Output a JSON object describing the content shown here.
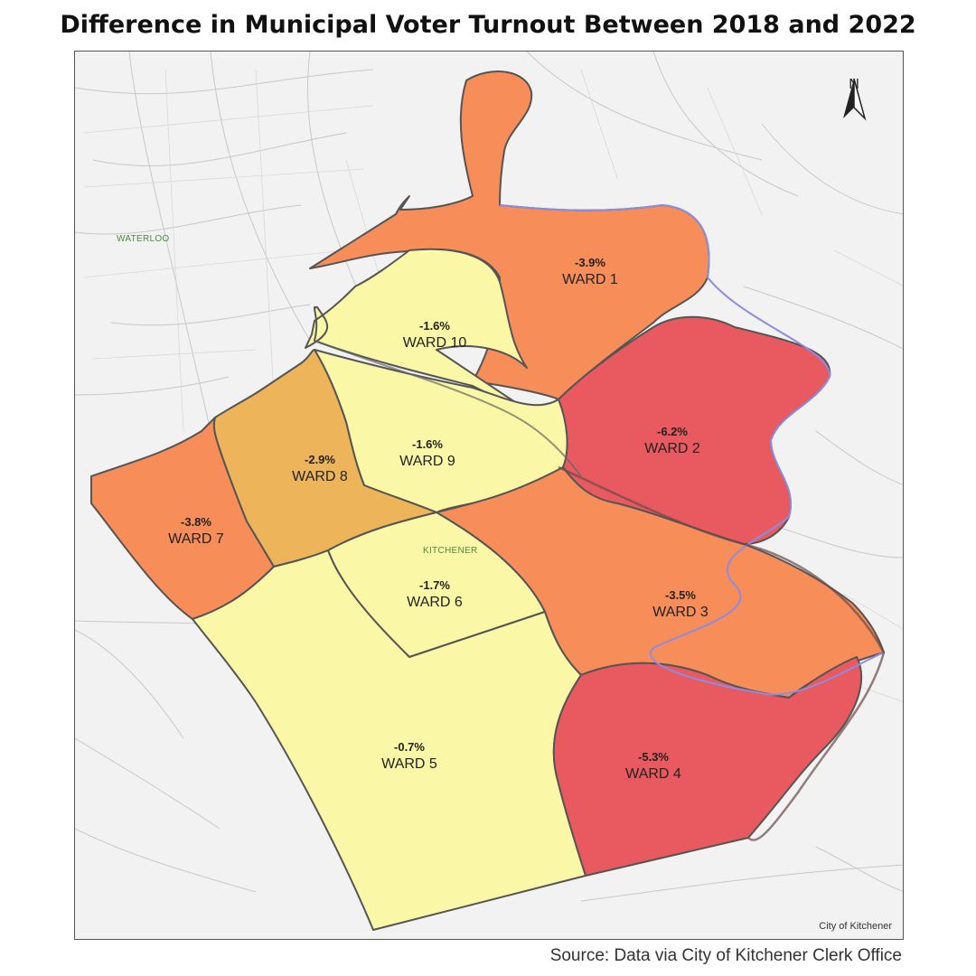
{
  "title": "Difference in Municipal Voter Turnout Between 2018 and 2022",
  "source": "Source: Data via City of Kitchener Clerk Office",
  "map_credit": "City of Kitchener",
  "north_label": "N",
  "places": {
    "waterloo": "WATERLOO",
    "kitchener": "KITCHENER"
  },
  "colors": {
    "lt_2": "#faf7a6",
    "between_2_3": "#edb45a",
    "between_3_4": "#f78d58",
    "gt_5": "#e85a60",
    "background": "#f2f2f2",
    "boundary": "#555555",
    "river": "#8c8ce0"
  },
  "wards": [
    {
      "name": "WARD 1",
      "change": "-3.9%",
      "value": -3.9,
      "color_key": "between_3_4"
    },
    {
      "name": "WARD 2",
      "change": "-6.2%",
      "value": -6.2,
      "color_key": "gt_5"
    },
    {
      "name": "WARD 3",
      "change": "-3.5%",
      "value": -3.5,
      "color_key": "between_3_4"
    },
    {
      "name": "WARD 4",
      "change": "-5.3%",
      "value": -5.3,
      "color_key": "gt_5"
    },
    {
      "name": "WARD 5",
      "change": "-0.7%",
      "value": -0.7,
      "color_key": "lt_2"
    },
    {
      "name": "WARD 6",
      "change": "-1.7%",
      "value": -1.7,
      "color_key": "lt_2"
    },
    {
      "name": "WARD 7",
      "change": "-3.8%",
      "value": -3.8,
      "color_key": "between_3_4"
    },
    {
      "name": "WARD 8",
      "change": "-2.9%",
      "value": -2.9,
      "color_key": "between_2_3"
    },
    {
      "name": "WARD 9",
      "change": "-1.6%",
      "value": -1.6,
      "color_key": "lt_2"
    },
    {
      "name": "WARD 10",
      "change": "-1.6%",
      "value": -1.6,
      "color_key": "lt_2"
    }
  ]
}
